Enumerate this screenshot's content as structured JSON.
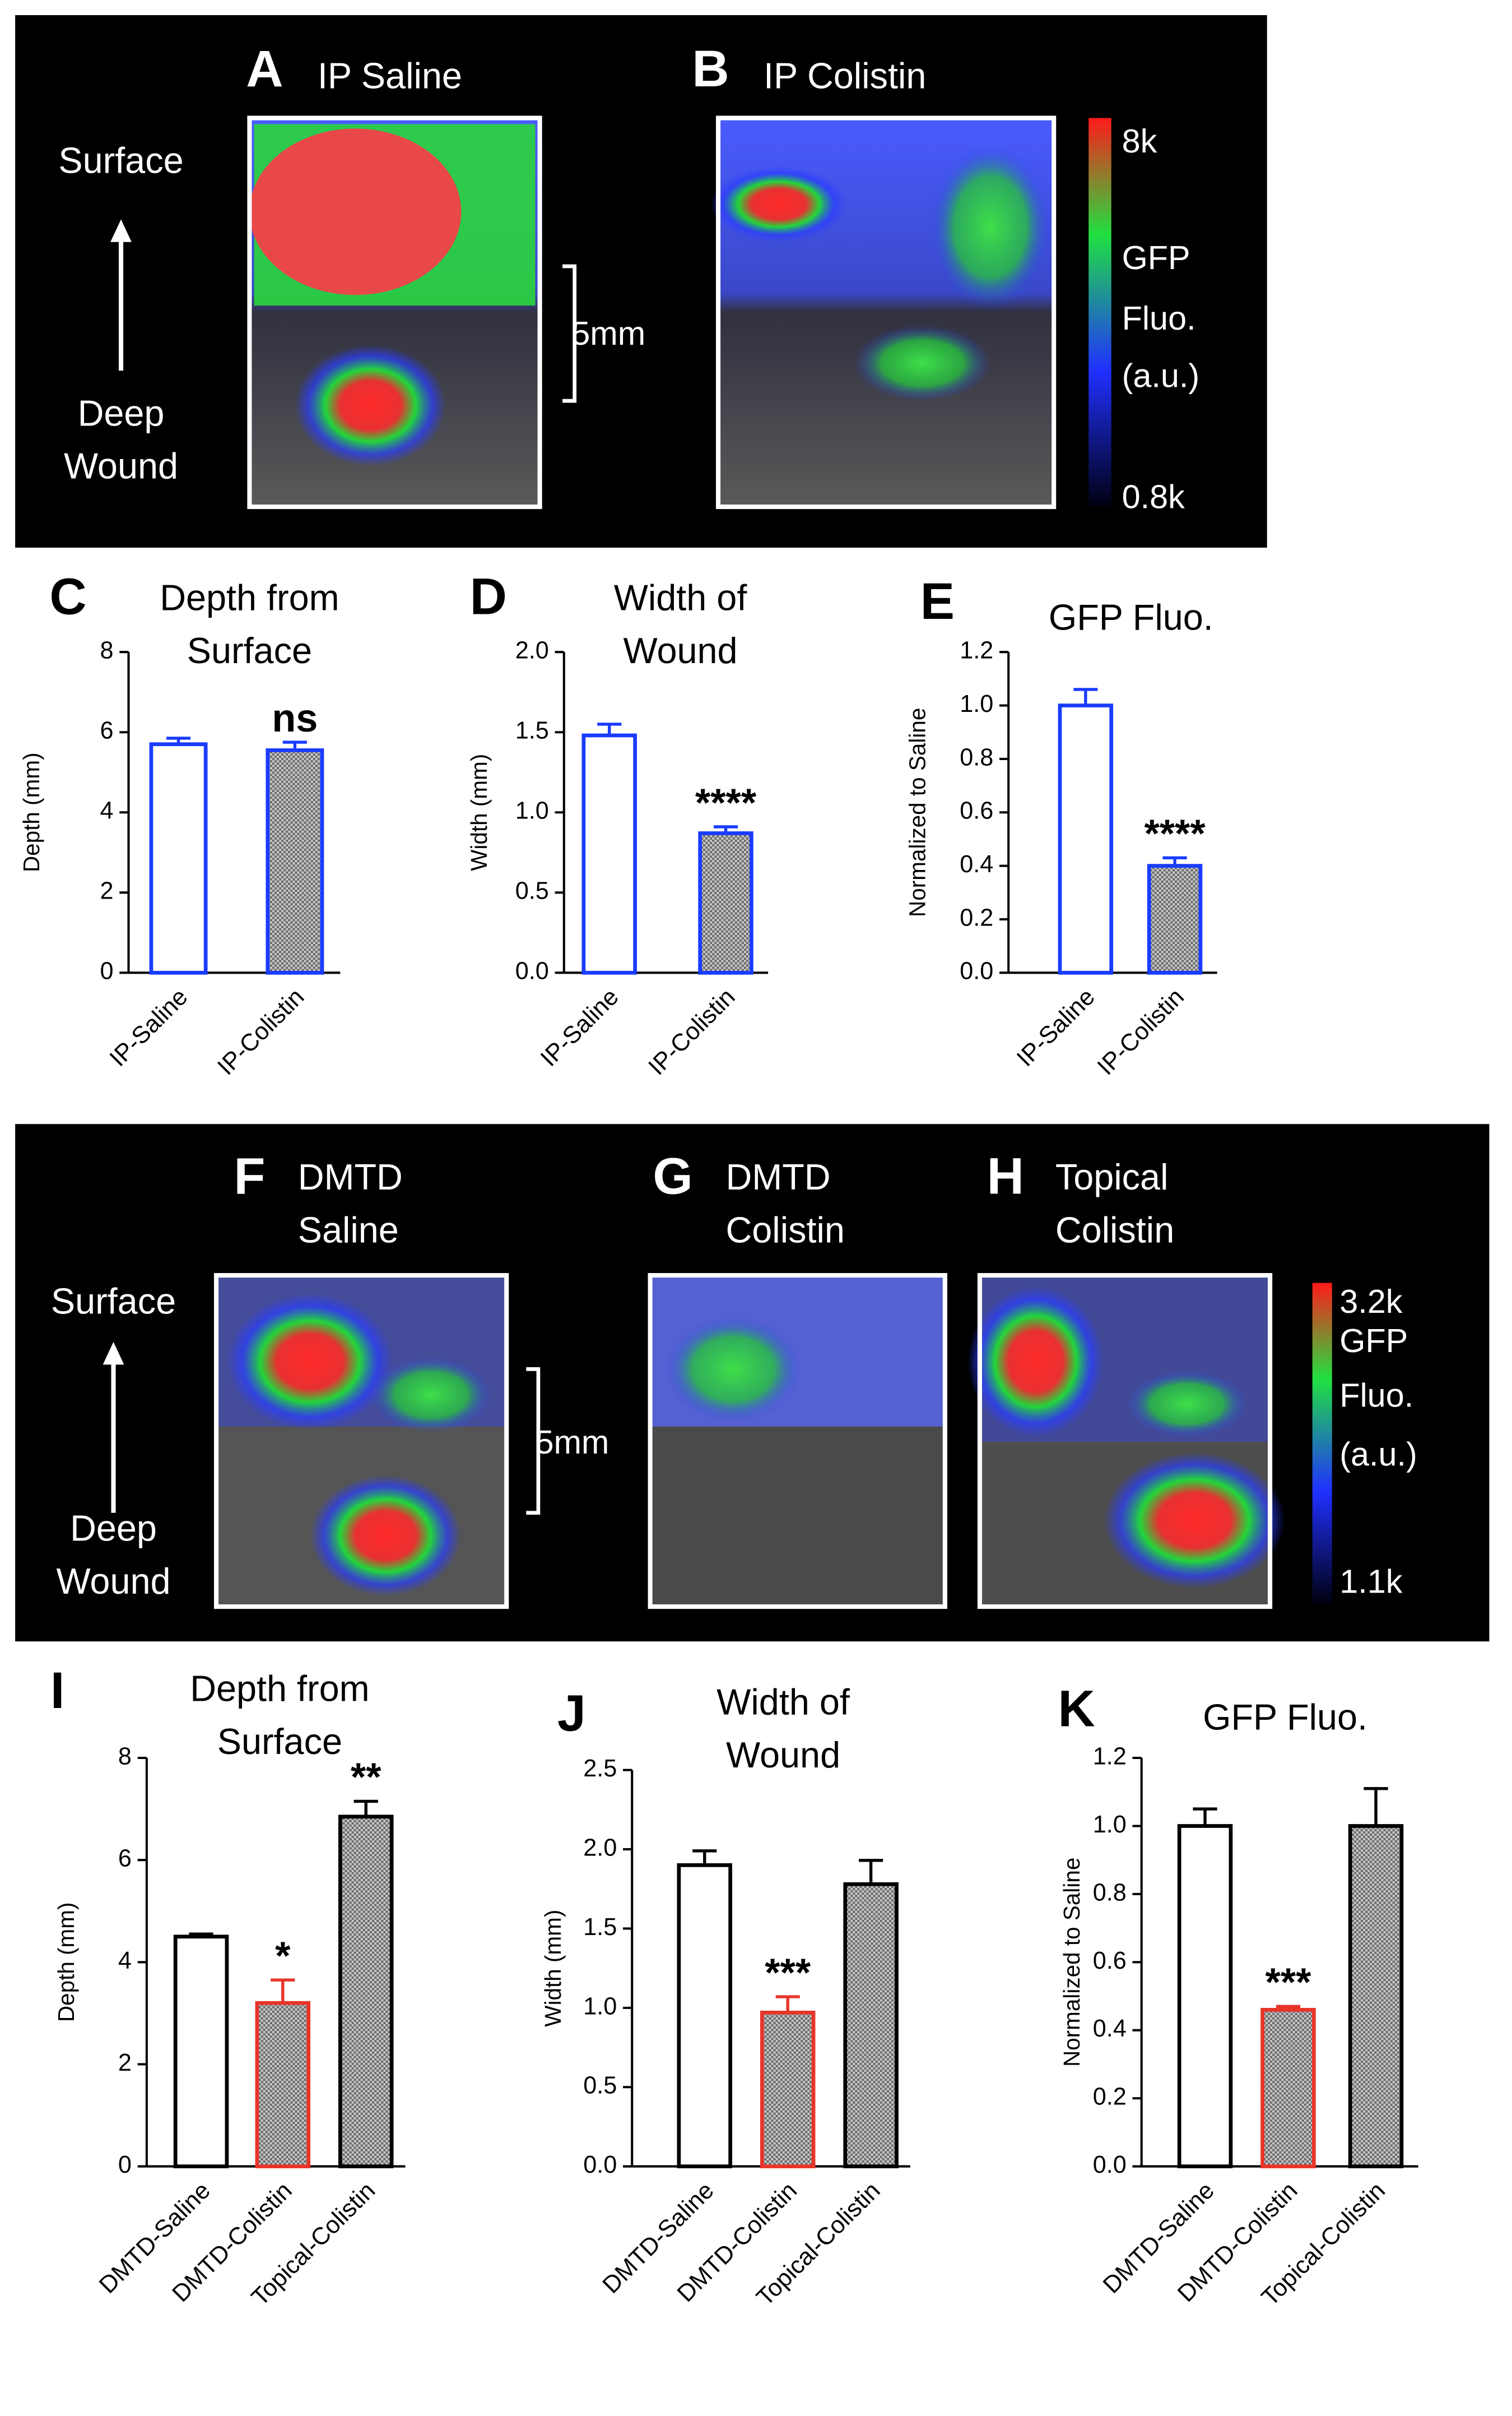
{
  "figure_top": {
    "panels": [
      {
        "letter": "A",
        "title": [
          "IP Saline"
        ]
      },
      {
        "letter": "B",
        "title": [
          "IP Colistin"
        ]
      }
    ],
    "surface": "Surface",
    "deep": [
      "Deep",
      "Wound"
    ],
    "scale": "5mm",
    "colorbar": {
      "max": "8k",
      "label": [
        "GFP",
        "Fluo.",
        "(a.u.)"
      ],
      "min": "0.8k"
    }
  },
  "figure_bottom": {
    "panels": [
      {
        "letter": "F",
        "title": [
          "DMTD",
          "Saline"
        ]
      },
      {
        "letter": "G",
        "title": [
          "DMTD",
          "Colistin"
        ]
      },
      {
        "letter": "H",
        "title": [
          "Topical",
          "Colistin"
        ]
      }
    ],
    "surface": "Surface",
    "deep": [
      "Deep",
      "Wound"
    ],
    "scale": "5mm",
    "colorbar": {
      "max": "3.2k",
      "label": [
        "GFP",
        "Fluo.",
        "(a.u.)"
      ],
      "min": "1.1k"
    }
  },
  "chart_data": [
    {
      "type": "bar",
      "panel": "C",
      "title": [
        "Depth from",
        "Surface"
      ],
      "ylabel": "Depth (mm)",
      "categories": [
        "IP-Saline",
        "IP-Colistin"
      ],
      "values": [
        5.7,
        5.55
      ],
      "errors": [
        0.15,
        0.2
      ],
      "ylim": [
        0,
        8
      ],
      "yticks": [
        0,
        2,
        4,
        6,
        8
      ],
      "significance": [
        null,
        "ns"
      ],
      "edge_colors": [
        "#1a3cff",
        "#1a3cff"
      ],
      "fills": [
        "white",
        "pattern"
      ]
    },
    {
      "type": "bar",
      "panel": "D",
      "title": [
        "Width of",
        "Wound"
      ],
      "ylabel": "Width (mm)",
      "categories": [
        "IP-Saline",
        "IP-Colistin"
      ],
      "values": [
        1.48,
        0.87
      ],
      "errors": [
        0.07,
        0.04
      ],
      "ylim": [
        0,
        2
      ],
      "yticks": [
        {
          "value": 0,
          "label": "0.0"
        },
        {
          "value": 0.5,
          "label": "0.5"
        },
        {
          "value": 1,
          "label": "1.0"
        },
        {
          "value": 1.5,
          "label": "1.5"
        },
        {
          "value": 2,
          "label": "2.0"
        }
      ],
      "significance": [
        null,
        "****"
      ],
      "edge_colors": [
        "#1a3cff",
        "#1a3cff"
      ],
      "fills": [
        "white",
        "pattern"
      ]
    },
    {
      "type": "bar",
      "panel": "E",
      "title": [
        "GFP Fluo."
      ],
      "ylabel": "Normalized to Saline",
      "categories": [
        "IP-Saline",
        "IP-Colistin"
      ],
      "values": [
        1.0,
        0.4
      ],
      "errors": [
        0.06,
        0.03
      ],
      "ylim": [
        0,
        1.2
      ],
      "yticks": [
        {
          "value": 0,
          "label": "0.0"
        },
        {
          "value": 0.2,
          "label": "0.2"
        },
        {
          "value": 0.4,
          "label": "0.4"
        },
        {
          "value": 0.6,
          "label": "0.6"
        },
        {
          "value": 0.8,
          "label": "0.8"
        },
        {
          "value": 1,
          "label": "1.0"
        },
        {
          "value": 1.2,
          "label": "1.2"
        }
      ],
      "significance": [
        null,
        "****"
      ],
      "edge_colors": [
        "#1a3cff",
        "#1a3cff"
      ],
      "fills": [
        "white",
        "pattern"
      ]
    },
    {
      "type": "bar",
      "panel": "I",
      "title": [
        "Depth from",
        "Surface"
      ],
      "ylabel": "Depth (mm)",
      "categories": [
        "DMTD-Saline",
        "DMTD-Colistin",
        "Topical-Colistin"
      ],
      "values": [
        4.5,
        3.2,
        6.85
      ],
      "errors": [
        0.05,
        0.45,
        0.3
      ],
      "ylim": [
        0,
        8
      ],
      "yticks": [
        0,
        2,
        4,
        6,
        8
      ],
      "significance": [
        null,
        "*",
        "**"
      ],
      "edge_colors": [
        "#000000",
        "#e8352a",
        "#000000"
      ],
      "fills": [
        "white",
        "pattern",
        "pattern"
      ]
    },
    {
      "type": "bar",
      "panel": "J",
      "title": [
        "Width of",
        "Wound"
      ],
      "ylabel": "Width (mm)",
      "categories": [
        "DMTD-Saline",
        "DMTD-Colistin",
        "Topical-Colistin"
      ],
      "values": [
        1.9,
        0.97,
        1.78
      ],
      "errors": [
        0.09,
        0.1,
        0.15
      ],
      "ylim": [
        0,
        2.5
      ],
      "yticks": [
        {
          "value": 0,
          "label": "0.0"
        },
        {
          "value": 0.5,
          "label": "0.5"
        },
        {
          "value": 1,
          "label": "1.0"
        },
        {
          "value": 1.5,
          "label": "1.5"
        },
        {
          "value": 2,
          "label": "2.0"
        },
        {
          "value": 2.5,
          "label": "2.5"
        }
      ],
      "significance": [
        null,
        "***",
        null
      ],
      "edge_colors": [
        "#000000",
        "#e8352a",
        "#000000"
      ],
      "fills": [
        "white",
        "pattern",
        "pattern"
      ]
    },
    {
      "type": "bar",
      "panel": "K",
      "title": [
        "GFP Fluo."
      ],
      "ylabel": "Normalized to Saline",
      "categories": [
        "DMTD-Saline",
        "DMTD-Colistin",
        "Topical-Colistin"
      ],
      "values": [
        1.0,
        0.46,
        1.0
      ],
      "errors": [
        0.05,
        0.01,
        0.11
      ],
      "ylim": [
        0,
        1.2
      ],
      "yticks": [
        {
          "value": 0,
          "label": "0.0"
        },
        {
          "value": 0.2,
          "label": "0.2"
        },
        {
          "value": 0.4,
          "label": "0.4"
        },
        {
          "value": 0.6,
          "label": "0.6"
        },
        {
          "value": 0.8,
          "label": "0.8"
        },
        {
          "value": 1,
          "label": "1.0"
        },
        {
          "value": 1.2,
          "label": "1.2"
        }
      ],
      "significance": [
        null,
        "***",
        null
      ],
      "edge_colors": [
        "#000000",
        "#e8352a",
        "#000000"
      ],
      "fills": [
        "white",
        "pattern",
        "pattern"
      ]
    }
  ]
}
